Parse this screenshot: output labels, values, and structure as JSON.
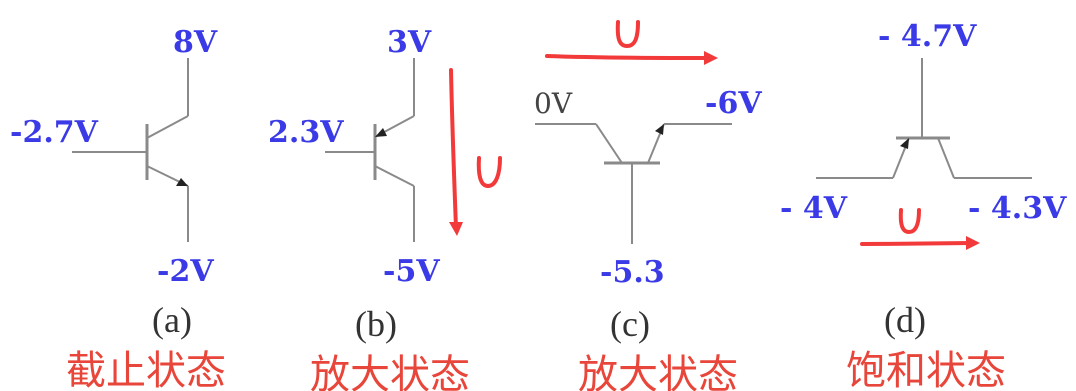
{
  "circuits": [
    {
      "id": "a",
      "collector_voltage": "8V",
      "base_voltage": "-2.7V",
      "emitter_voltage": "-2V",
      "caption": "(a)",
      "state": "截止状态"
    },
    {
      "id": "b",
      "emitter_voltage": "3V",
      "base_voltage": "2.3V",
      "collector_voltage": "-5V",
      "caption": "(b)",
      "state": "放大状态",
      "annotation": "U"
    },
    {
      "id": "c",
      "collector_voltage": "0V",
      "emitter_voltage": "-6V",
      "base_voltage": "-5.3",
      "caption": "(c)",
      "state": "放大状态",
      "annotation": "U"
    },
    {
      "id": "d",
      "base_voltage": "- 4.7V",
      "collector_voltage": "- 4V",
      "emitter_voltage": "- 4.3V",
      "caption": "(d)",
      "state": "饱和状态",
      "annotation": "U"
    }
  ],
  "colors": {
    "voltage_text": "#3a3ae6",
    "state_text": "#e8463a",
    "handwriting": "#f23a3a",
    "wire": "#8a8a8a"
  }
}
